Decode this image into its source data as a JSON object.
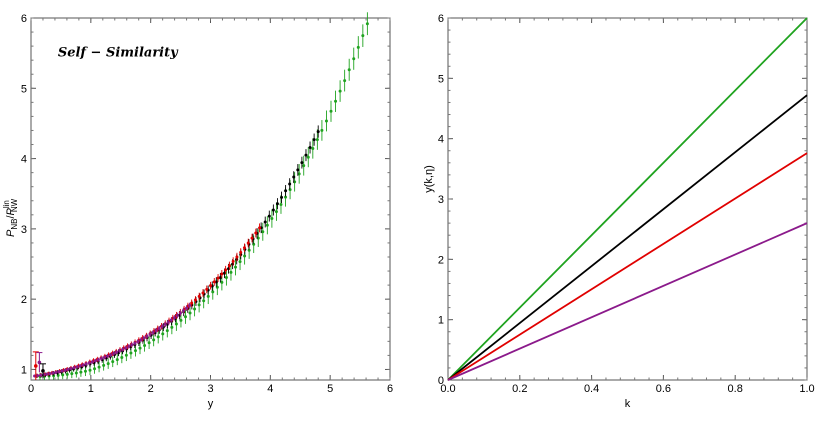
{
  "chart_data": [
    {
      "type": "scatter",
      "xlabel": "y",
      "ylabel": "P_NB / P_NW^lin",
      "ylabel_parts": {
        "P": "P",
        "NB": "NB",
        "slash": "/",
        "P2": "P",
        "sup": "lin",
        "NW": "NW"
      },
      "xlim": [
        0,
        6
      ],
      "ylim": [
        0.85,
        6
      ],
      "xticks": [
        "0",
        "1",
        "2",
        "3",
        "4",
        "5",
        "6"
      ],
      "yticks": [
        "1",
        "2",
        "3",
        "4",
        "5",
        "6"
      ],
      "annotation": "Self  − Similarity",
      "grid": false,
      "series": [
        {
          "color": "#1fa31f",
          "x_start": 0.15,
          "x_end": 5.85,
          "count": 76,
          "offset": -0.09,
          "err": 0.05
        },
        {
          "color": "#000000",
          "x_start": 0.1,
          "x_end": 4.8,
          "count": 70,
          "offset": 0.0,
          "err": 0.03
        },
        {
          "color": "#e00000",
          "x_start": 0.1,
          "x_end": 3.82,
          "count": 60,
          "offset": 0.03,
          "err": 0.025
        },
        {
          "color": "#8b1a8b",
          "x_start": 0.06,
          "x_end": 2.65,
          "count": 52,
          "offset": 0.02,
          "err": 0.02
        }
      ],
      "low_k_error_bars": [
        {
          "x": 0.08,
          "y": 1.05,
          "err": 0.2,
          "color": "#e00000"
        },
        {
          "x": 0.14,
          "y": 1.1,
          "err": 0.14,
          "color": "#8b1a8b"
        },
        {
          "x": 0.2,
          "y": 0.98,
          "err": 0.1,
          "color": "#000000"
        }
      ]
    },
    {
      "type": "line",
      "xlabel": "k",
      "ylabel": "y(k,η)",
      "xlim": [
        0,
        1
      ],
      "ylim": [
        0,
        6
      ],
      "xticks": [
        "0.0",
        "0.2",
        "0.4",
        "0.6",
        "0.8",
        "1.0"
      ],
      "yticks": [
        "0",
        "1",
        "2",
        "3",
        "4",
        "5",
        "6"
      ],
      "grid": false,
      "series": [
        {
          "color": "#1fa31f",
          "x": [
            0,
            1
          ],
          "y": [
            0,
            6.0
          ]
        },
        {
          "color": "#000000",
          "x": [
            0,
            1
          ],
          "y": [
            0,
            4.72
          ]
        },
        {
          "color": "#e00000",
          "x": [
            0,
            1
          ],
          "y": [
            0,
            3.76
          ]
        },
        {
          "color": "#8b1a8b",
          "x": [
            0,
            1
          ],
          "y": [
            0,
            2.6
          ]
        }
      ]
    }
  ]
}
